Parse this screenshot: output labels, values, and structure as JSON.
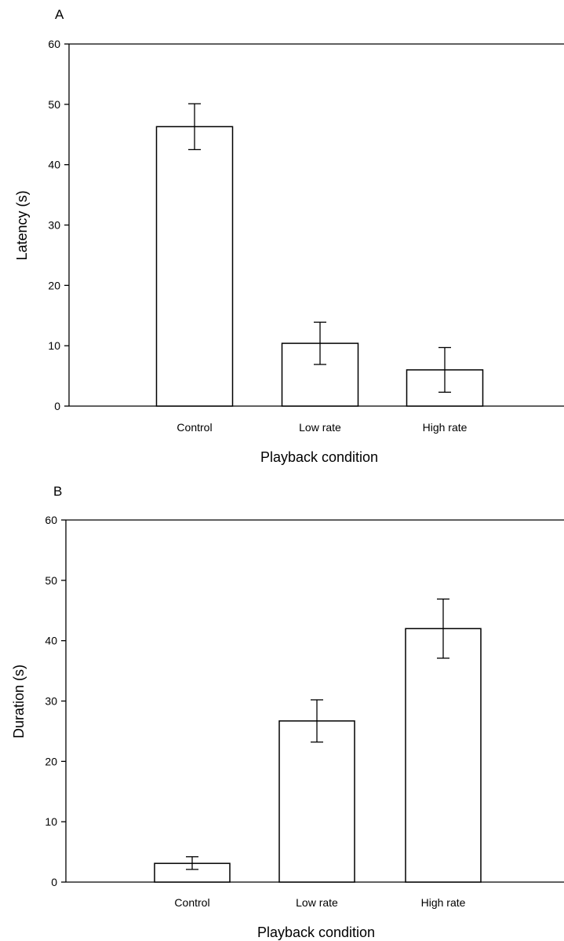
{
  "chart_data": [
    {
      "panel": "A",
      "type": "bar",
      "categories": [
        "Control",
        "Low rate",
        "High rate"
      ],
      "values": [
        46.3,
        10.4,
        6.0
      ],
      "error": [
        [
          42.5,
          50.1
        ],
        [
          6.9,
          13.9
        ],
        [
          2.3,
          9.7
        ]
      ],
      "xlabel": "Playback condition",
      "ylabel": "Latency (s)",
      "ylim": [
        0,
        60
      ],
      "yticks": [
        0,
        10,
        20,
        30,
        40,
        50,
        60
      ],
      "grid": false
    },
    {
      "panel": "B",
      "type": "bar",
      "categories": [
        "Control",
        "Low rate",
        "High rate"
      ],
      "values": [
        3.1,
        26.7,
        42.0
      ],
      "error": [
        [
          2.1,
          4.2
        ],
        [
          23.2,
          30.2
        ],
        [
          37.1,
          46.9
        ]
      ],
      "xlabel": "Playback condition",
      "ylabel": "Duration (s)",
      "ylim": [
        0,
        60
      ],
      "yticks": [
        0,
        10,
        20,
        30,
        40,
        50,
        60
      ],
      "grid": false
    }
  ]
}
